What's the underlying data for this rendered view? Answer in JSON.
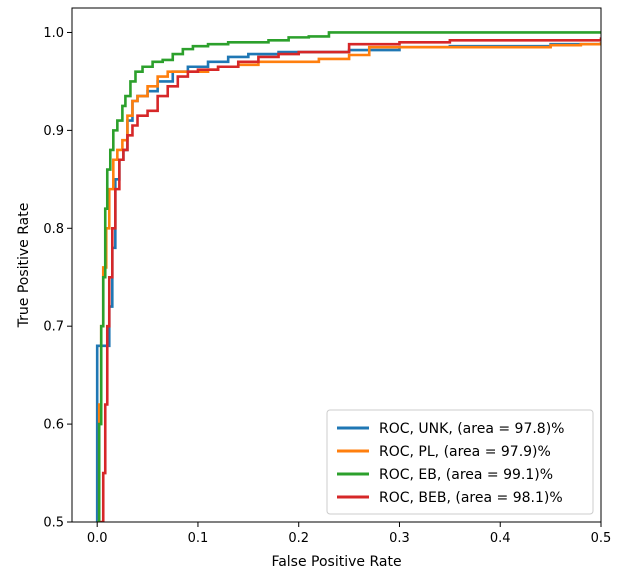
{
  "chart_data": {
    "type": "line",
    "title": "",
    "xlabel": "False Positive Rate",
    "ylabel": "True Positive Rate",
    "xlim": [
      -0.025,
      0.5
    ],
    "ylim": [
      0.5,
      1.025
    ],
    "x_ticks": [
      0.0,
      0.1,
      0.2,
      0.3,
      0.4,
      0.5
    ],
    "x_tick_labels": [
      "0.0",
      "0.1",
      "0.2",
      "0.3",
      "0.4",
      "0.5"
    ],
    "y_ticks": [
      0.5,
      0.6,
      0.7,
      0.8,
      0.9,
      1.0
    ],
    "y_tick_labels": [
      "0.5",
      "0.6",
      "0.7",
      "0.8",
      "0.9",
      "1.0"
    ],
    "grid": false,
    "legend_position": "bottom-right",
    "series": [
      {
        "name": "ROC, UNK, (area = 97.8)%",
        "color": "#1f77b4",
        "points": [
          [
            0.0,
            0.5
          ],
          [
            0.0,
            0.68
          ],
          [
            0.01,
            0.68
          ],
          [
            0.012,
            0.72
          ],
          [
            0.015,
            0.78
          ],
          [
            0.018,
            0.85
          ],
          [
            0.022,
            0.87
          ],
          [
            0.026,
            0.88
          ],
          [
            0.03,
            0.91
          ],
          [
            0.035,
            0.93
          ],
          [
            0.04,
            0.935
          ],
          [
            0.05,
            0.94
          ],
          [
            0.06,
            0.95
          ],
          [
            0.075,
            0.96
          ],
          [
            0.09,
            0.965
          ],
          [
            0.11,
            0.97
          ],
          [
            0.13,
            0.975
          ],
          [
            0.15,
            0.978
          ],
          [
            0.18,
            0.98
          ],
          [
            0.21,
            0.98
          ],
          [
            0.25,
            0.982
          ],
          [
            0.3,
            0.985
          ],
          [
            0.35,
            0.986
          ],
          [
            0.4,
            0.986
          ],
          [
            0.45,
            0.988
          ],
          [
            0.5,
            0.99
          ]
        ]
      },
      {
        "name": "ROC, PL, (area = 97.9)%",
        "color": "#ff7f0e",
        "points": [
          [
            0.0,
            0.5
          ],
          [
            0.002,
            0.62
          ],
          [
            0.004,
            0.7
          ],
          [
            0.006,
            0.76
          ],
          [
            0.009,
            0.8
          ],
          [
            0.012,
            0.84
          ],
          [
            0.016,
            0.87
          ],
          [
            0.02,
            0.88
          ],
          [
            0.025,
            0.89
          ],
          [
            0.03,
            0.915
          ],
          [
            0.035,
            0.93
          ],
          [
            0.04,
            0.935
          ],
          [
            0.05,
            0.945
          ],
          [
            0.06,
            0.955
          ],
          [
            0.07,
            0.96
          ],
          [
            0.09,
            0.96
          ],
          [
            0.11,
            0.962
          ],
          [
            0.12,
            0.965
          ],
          [
            0.14,
            0.967
          ],
          [
            0.16,
            0.97
          ],
          [
            0.18,
            0.97
          ],
          [
            0.2,
            0.97
          ],
          [
            0.22,
            0.973
          ],
          [
            0.25,
            0.977
          ],
          [
            0.27,
            0.985
          ],
          [
            0.3,
            0.985
          ],
          [
            0.35,
            0.985
          ],
          [
            0.4,
            0.985
          ],
          [
            0.45,
            0.987
          ],
          [
            0.48,
            0.988
          ],
          [
            0.5,
            0.99
          ]
        ]
      },
      {
        "name": "ROC, EB, (area = 99.1)%",
        "color": "#2ca02c",
        "points": [
          [
            0.0,
            0.5
          ],
          [
            0.002,
            0.6
          ],
          [
            0.004,
            0.7
          ],
          [
            0.006,
            0.75
          ],
          [
            0.008,
            0.82
          ],
          [
            0.01,
            0.86
          ],
          [
            0.013,
            0.88
          ],
          [
            0.016,
            0.9
          ],
          [
            0.02,
            0.91
          ],
          [
            0.025,
            0.925
          ],
          [
            0.028,
            0.935
          ],
          [
            0.033,
            0.95
          ],
          [
            0.038,
            0.96
          ],
          [
            0.045,
            0.965
          ],
          [
            0.055,
            0.97
          ],
          [
            0.065,
            0.972
          ],
          [
            0.075,
            0.978
          ],
          [
            0.085,
            0.983
          ],
          [
            0.095,
            0.986
          ],
          [
            0.11,
            0.988
          ],
          [
            0.13,
            0.99
          ],
          [
            0.15,
            0.99
          ],
          [
            0.17,
            0.992
          ],
          [
            0.19,
            0.995
          ],
          [
            0.21,
            0.996
          ],
          [
            0.23,
            1.0
          ],
          [
            0.3,
            1.0
          ],
          [
            0.4,
            1.0
          ],
          [
            0.5,
            1.0
          ]
        ]
      },
      {
        "name": "ROC, BEB, (area = 98.1)%",
        "color": "#d62728",
        "points": [
          [
            0.003,
            0.5
          ],
          [
            0.006,
            0.55
          ],
          [
            0.008,
            0.62
          ],
          [
            0.01,
            0.7
          ],
          [
            0.012,
            0.75
          ],
          [
            0.015,
            0.8
          ],
          [
            0.018,
            0.84
          ],
          [
            0.022,
            0.87
          ],
          [
            0.026,
            0.88
          ],
          [
            0.03,
            0.895
          ],
          [
            0.035,
            0.905
          ],
          [
            0.04,
            0.915
          ],
          [
            0.05,
            0.92
          ],
          [
            0.06,
            0.935
          ],
          [
            0.07,
            0.945
          ],
          [
            0.08,
            0.955
          ],
          [
            0.09,
            0.96
          ],
          [
            0.1,
            0.962
          ],
          [
            0.12,
            0.965
          ],
          [
            0.14,
            0.97
          ],
          [
            0.16,
            0.975
          ],
          [
            0.18,
            0.978
          ],
          [
            0.2,
            0.98
          ],
          [
            0.22,
            0.98
          ],
          [
            0.25,
            0.988
          ],
          [
            0.3,
            0.99
          ],
          [
            0.35,
            0.992
          ],
          [
            0.4,
            0.992
          ],
          [
            0.45,
            0.992
          ],
          [
            0.5,
            0.995
          ]
        ]
      }
    ]
  }
}
